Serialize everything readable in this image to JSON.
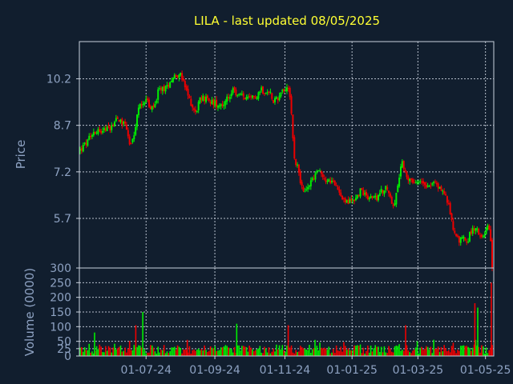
{
  "chart_data": {
    "type": "candlestick",
    "title": "LILA - last updated 08/05/2025",
    "price_panel": {
      "ylabel": "Price",
      "yticks": [
        5.7,
        7.2,
        8.7,
        10.2
      ],
      "ytick_labels": [
        "5.7",
        "7.2",
        "8.7",
        "10.2"
      ],
      "ylim": [
        4.1,
        11.4
      ],
      "grid": true
    },
    "volume_panel": {
      "ylabel": "Volume (0000)",
      "yticks": [
        0,
        25,
        50,
        100,
        150,
        200,
        250,
        300
      ],
      "ytick_labels": [
        "0",
        "25",
        "50",
        "100",
        "150",
        "200",
        "250",
        "300"
      ],
      "ylim": [
        0,
        300
      ],
      "grid": true
    },
    "xaxis": {
      "tick_labels": [
        "01-07-24",
        "01-09-24",
        "01-11-24",
        "01-01-25",
        "01-03-25",
        "01-05-25"
      ],
      "tick_positions": [
        0.161,
        0.327,
        0.496,
        0.658,
        0.817,
        0.98
      ]
    },
    "up_color": "#00ee00",
    "down_color": "#ee0000",
    "price_path": [
      [
        0.0,
        7.9
      ],
      [
        0.02,
        8.2
      ],
      [
        0.03,
        8.5
      ],
      [
        0.05,
        8.55
      ],
      [
        0.07,
        8.6
      ],
      [
        0.08,
        8.75
      ],
      [
        0.09,
        9.0
      ],
      [
        0.1,
        8.8
      ],
      [
        0.11,
        8.8
      ],
      [
        0.12,
        8.1
      ],
      [
        0.13,
        8.2
      ],
      [
        0.14,
        9.2
      ],
      [
        0.15,
        9.4
      ],
      [
        0.16,
        9.6
      ],
      [
        0.17,
        9.2
      ],
      [
        0.18,
        9.3
      ],
      [
        0.19,
        9.8
      ],
      [
        0.2,
        9.9
      ],
      [
        0.21,
        9.9
      ],
      [
        0.22,
        10.2
      ],
      [
        0.24,
        10.4
      ],
      [
        0.25,
        10.1
      ],
      [
        0.26,
        9.7
      ],
      [
        0.27,
        9.4
      ],
      [
        0.28,
        9.1
      ],
      [
        0.29,
        9.5
      ],
      [
        0.3,
        9.6
      ],
      [
        0.31,
        9.5
      ],
      [
        0.33,
        9.4
      ],
      [
        0.35,
        9.4
      ],
      [
        0.36,
        9.6
      ],
      [
        0.37,
        9.8
      ],
      [
        0.38,
        9.7
      ],
      [
        0.4,
        9.6
      ],
      [
        0.41,
        9.5
      ],
      [
        0.43,
        9.7
      ],
      [
        0.44,
        9.9
      ],
      [
        0.45,
        9.7
      ],
      [
        0.46,
        9.8
      ],
      [
        0.47,
        9.5
      ],
      [
        0.48,
        9.6
      ],
      [
        0.49,
        9.8
      ],
      [
        0.5,
        9.9
      ],
      [
        0.505,
        10.0
      ],
      [
        0.51,
        9.6
      ],
      [
        0.515,
        8.6
      ],
      [
        0.52,
        7.6
      ],
      [
        0.53,
        7.3
      ],
      [
        0.535,
        6.9
      ],
      [
        0.54,
        6.5
      ],
      [
        0.55,
        6.6
      ],
      [
        0.56,
        6.9
      ],
      [
        0.57,
        7.1
      ],
      [
        0.58,
        7.3
      ],
      [
        0.59,
        7.0
      ],
      [
        0.6,
        6.9
      ],
      [
        0.61,
        6.9
      ],
      [
        0.62,
        6.7
      ],
      [
        0.63,
        6.6
      ],
      [
        0.64,
        6.3
      ],
      [
        0.65,
        6.2
      ],
      [
        0.66,
        6.3
      ],
      [
        0.67,
        6.35
      ],
      [
        0.68,
        6.6
      ],
      [
        0.69,
        6.5
      ],
      [
        0.7,
        6.4
      ],
      [
        0.71,
        6.4
      ],
      [
        0.72,
        6.3
      ],
      [
        0.73,
        6.55
      ],
      [
        0.74,
        6.7
      ],
      [
        0.75,
        6.5
      ],
      [
        0.755,
        6.3
      ],
      [
        0.76,
        6.1
      ],
      [
        0.77,
        6.6
      ],
      [
        0.775,
        7.0
      ],
      [
        0.78,
        7.5
      ],
      [
        0.79,
        7.2
      ],
      [
        0.8,
        6.9
      ],
      [
        0.81,
        6.8
      ],
      [
        0.82,
        6.8
      ],
      [
        0.83,
        6.9
      ],
      [
        0.84,
        6.8
      ],
      [
        0.85,
        6.8
      ],
      [
        0.86,
        6.85
      ],
      [
        0.87,
        6.7
      ],
      [
        0.88,
        6.6
      ],
      [
        0.89,
        6.3
      ],
      [
        0.9,
        5.8
      ],
      [
        0.91,
        5.1
      ],
      [
        0.92,
        5.0
      ],
      [
        0.93,
        5.1
      ],
      [
        0.94,
        5.0
      ],
      [
        0.95,
        5.3
      ],
      [
        0.96,
        5.4
      ],
      [
        0.97,
        5.2
      ],
      [
        0.98,
        5.2
      ],
      [
        0.99,
        5.5
      ],
      [
        0.995,
        5.2
      ],
      [
        1.0,
        4.1
      ]
    ],
    "volume_spikes": [
      [
        0.035,
        80
      ],
      [
        0.135,
        105
      ],
      [
        0.152,
        150
      ],
      [
        0.26,
        55
      ],
      [
        0.38,
        110
      ],
      [
        0.505,
        105
      ],
      [
        0.57,
        55
      ],
      [
        0.79,
        105
      ],
      [
        0.96,
        55
      ],
      [
        0.958,
        180
      ],
      [
        0.965,
        165
      ],
      [
        0.998,
        250
      ]
    ]
  }
}
